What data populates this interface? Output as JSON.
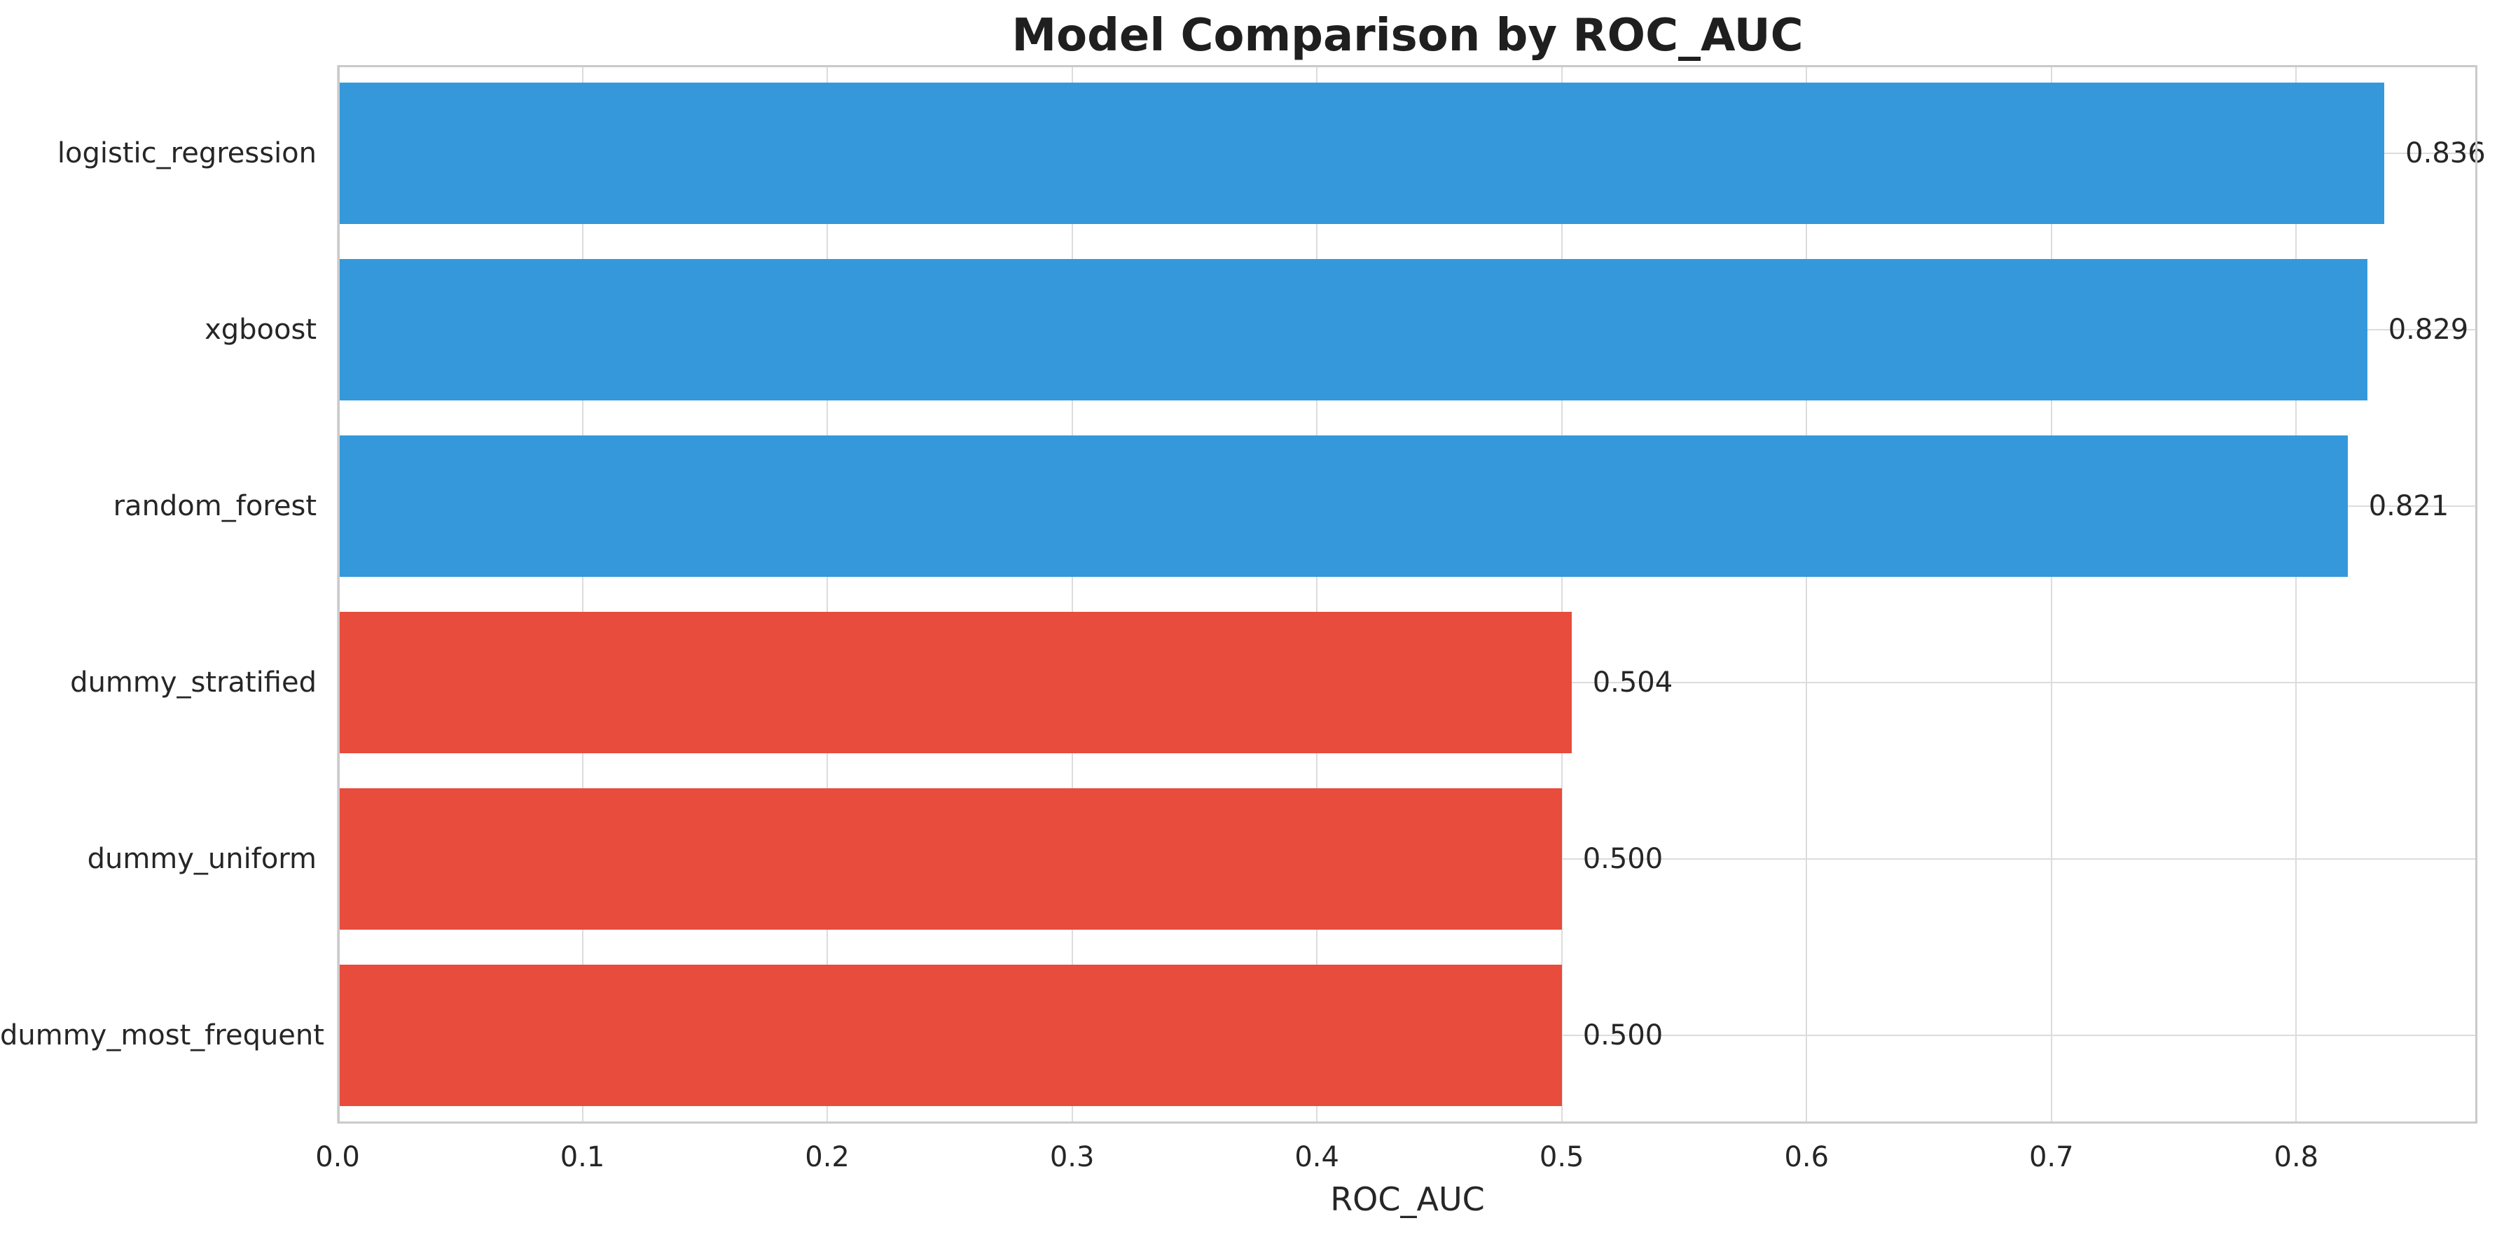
{
  "chart_data": {
    "type": "bar",
    "orientation": "horizontal",
    "title": "Model Comparison by ROC_AUC",
    "xlabel": "ROC_AUC",
    "ylabel": "",
    "categories": [
      "logistic_regression",
      "xgboost",
      "random_forest",
      "dummy_stratified",
      "dummy_uniform",
      "dummy_most_frequent"
    ],
    "values": [
      0.836,
      0.829,
      0.821,
      0.504,
      0.5,
      0.5
    ],
    "value_labels": [
      "0.836",
      "0.829",
      "0.821",
      "0.504",
      "0.500",
      "0.500"
    ],
    "bar_colors": [
      "#3498db",
      "#3498db",
      "#3498db",
      "#e74c3c",
      "#e74c3c",
      "#e74c3c"
    ],
    "xlim": [
      0,
      0.874
    ],
    "xticks": [
      0.0,
      0.1,
      0.2,
      0.3,
      0.4,
      0.5,
      0.6,
      0.7,
      0.8
    ],
    "xtick_labels": [
      "0.0",
      "0.1",
      "0.2",
      "0.3",
      "0.4",
      "0.5",
      "0.6",
      "0.7",
      "0.8"
    ],
    "grid": true,
    "legend_position": "none",
    "bar_height_fraction": 0.8,
    "colors": {
      "model_bar": "#3498db",
      "baseline_bar": "#e74c3c",
      "grid_line": "#dcdcdc",
      "spine": "#cacaca",
      "text": "#262626",
      "background": "#ffffff"
    }
  }
}
